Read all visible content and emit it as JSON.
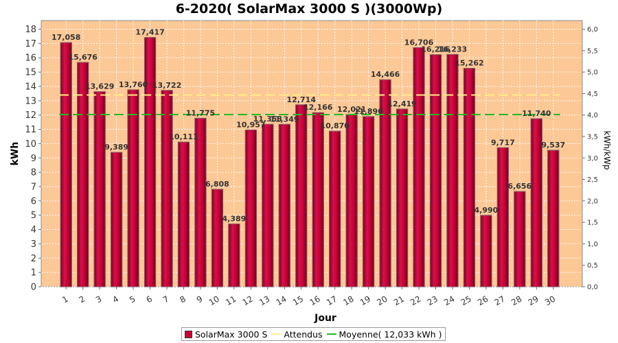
{
  "chart_data": {
    "type": "bar",
    "title": "6-2020( SolarMax 3000 S )(3000Wp)",
    "xlabel": "Jour",
    "ylabel": "kWh",
    "ylabel_right": "kWh/kWp",
    "ylim": [
      0,
      18.6
    ],
    "ylim_right": [
      0,
      6.2
    ],
    "yticks": [
      "0",
      "1",
      "2",
      "3",
      "4",
      "5",
      "6",
      "7",
      "8",
      "9",
      "10",
      "11",
      "12",
      "13",
      "14",
      "15",
      "16",
      "17",
      "18"
    ],
    "yticks_right": [
      "0,0",
      "0,5",
      "1,0",
      "1,5",
      "2,0",
      "2,5",
      "3,0",
      "3,5",
      "4,0",
      "4,5",
      "5,0",
      "5,5",
      "6,0"
    ],
    "categories": [
      "1",
      "2",
      "3",
      "4",
      "5",
      "6",
      "7",
      "8",
      "9",
      "10",
      "11",
      "12",
      "13",
      "14",
      "15",
      "16",
      "17",
      "18",
      "19",
      "20",
      "21",
      "22",
      "23",
      "24",
      "25",
      "26",
      "27",
      "28",
      "29",
      "30"
    ],
    "series": [
      {
        "name": "SolarMax 3000 S",
        "values": [
          17.058,
          15.676,
          13.629,
          9.389,
          13.76,
          17.417,
          13.722,
          10.111,
          11.775,
          6.808,
          4.389,
          10.957,
          11.353,
          11.349,
          12.714,
          12.166,
          10.87,
          12.021,
          11.89,
          14.466,
          12.419,
          16.706,
          16.216,
          16.233,
          15.262,
          4.99,
          9.717,
          6.656,
          11.74,
          9.537
        ],
        "labels": [
          "17,058",
          "15,676",
          "13,629",
          "9,389",
          "13,760",
          "17,417",
          "13,722",
          "10,111",
          "11,775",
          "6,808",
          "4,389",
          "10,957",
          "11,353",
          "11,349",
          "12,714",
          "12,166",
          "10,870",
          "12,021",
          "11,890",
          "14,466",
          "12,419",
          "16,706",
          "16,216",
          "16,233",
          "15,262",
          "4,990",
          "9,717",
          "6,656",
          "11,740",
          "9,537"
        ],
        "color": "#cc0033"
      },
      {
        "name": "Attendus",
        "value": 13.4,
        "color": "#ffee88"
      },
      {
        "name": "Moyenne( 12,033 kWh )",
        "value": 12.033,
        "color": "#22bb22"
      }
    ],
    "plot_background": "#fcc896",
    "grid": true,
    "legend_position": "bottom"
  },
  "legend": {
    "bar_label": "SolarMax 3000 S",
    "expected_label": "Attendus",
    "average_label": "Moyenne( 12,033 kWh )"
  }
}
